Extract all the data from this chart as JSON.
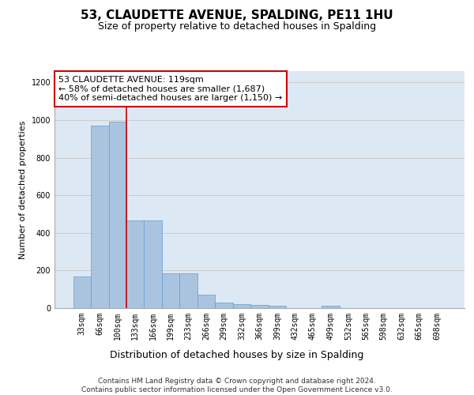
{
  "title": "53, CLAUDETTE AVENUE, SPALDING, PE11 1HU",
  "subtitle": "Size of property relative to detached houses in Spalding",
  "xlabel": "Distribution of detached houses by size in Spalding",
  "ylabel": "Number of detached properties",
  "categories": [
    "33sqm",
    "66sqm",
    "100sqm",
    "133sqm",
    "166sqm",
    "199sqm",
    "233sqm",
    "266sqm",
    "299sqm",
    "332sqm",
    "366sqm",
    "399sqm",
    "432sqm",
    "465sqm",
    "499sqm",
    "532sqm",
    "565sqm",
    "598sqm",
    "632sqm",
    "665sqm",
    "698sqm"
  ],
  "values": [
    170,
    970,
    990,
    465,
    465,
    185,
    185,
    70,
    28,
    22,
    18,
    12,
    0,
    0,
    12,
    0,
    0,
    0,
    0,
    0,
    0
  ],
  "bar_color": "#aac4e0",
  "bar_edge_color": "#5a9fd4",
  "grid_color": "#cccccc",
  "background_color": "#dde8f5",
  "annotation_text": "53 CLAUDETTE AVENUE: 119sqm\n← 58% of detached houses are smaller (1,687)\n40% of semi-detached houses are larger (1,150) →",
  "annotation_box_color": "#ffffff",
  "annotation_box_edge_color": "#cc0000",
  "vline_x": 2.5,
  "vline_color": "#cc0000",
  "ylim": [
    0,
    1260
  ],
  "yticks": [
    0,
    200,
    400,
    600,
    800,
    1000,
    1200
  ],
  "footer": "Contains HM Land Registry data © Crown copyright and database right 2024.\nContains public sector information licensed under the Open Government Licence v3.0.",
  "title_fontsize": 11,
  "subtitle_fontsize": 9,
  "xlabel_fontsize": 9,
  "ylabel_fontsize": 8,
  "tick_fontsize": 7,
  "annotation_fontsize": 8,
  "footer_fontsize": 6.5
}
